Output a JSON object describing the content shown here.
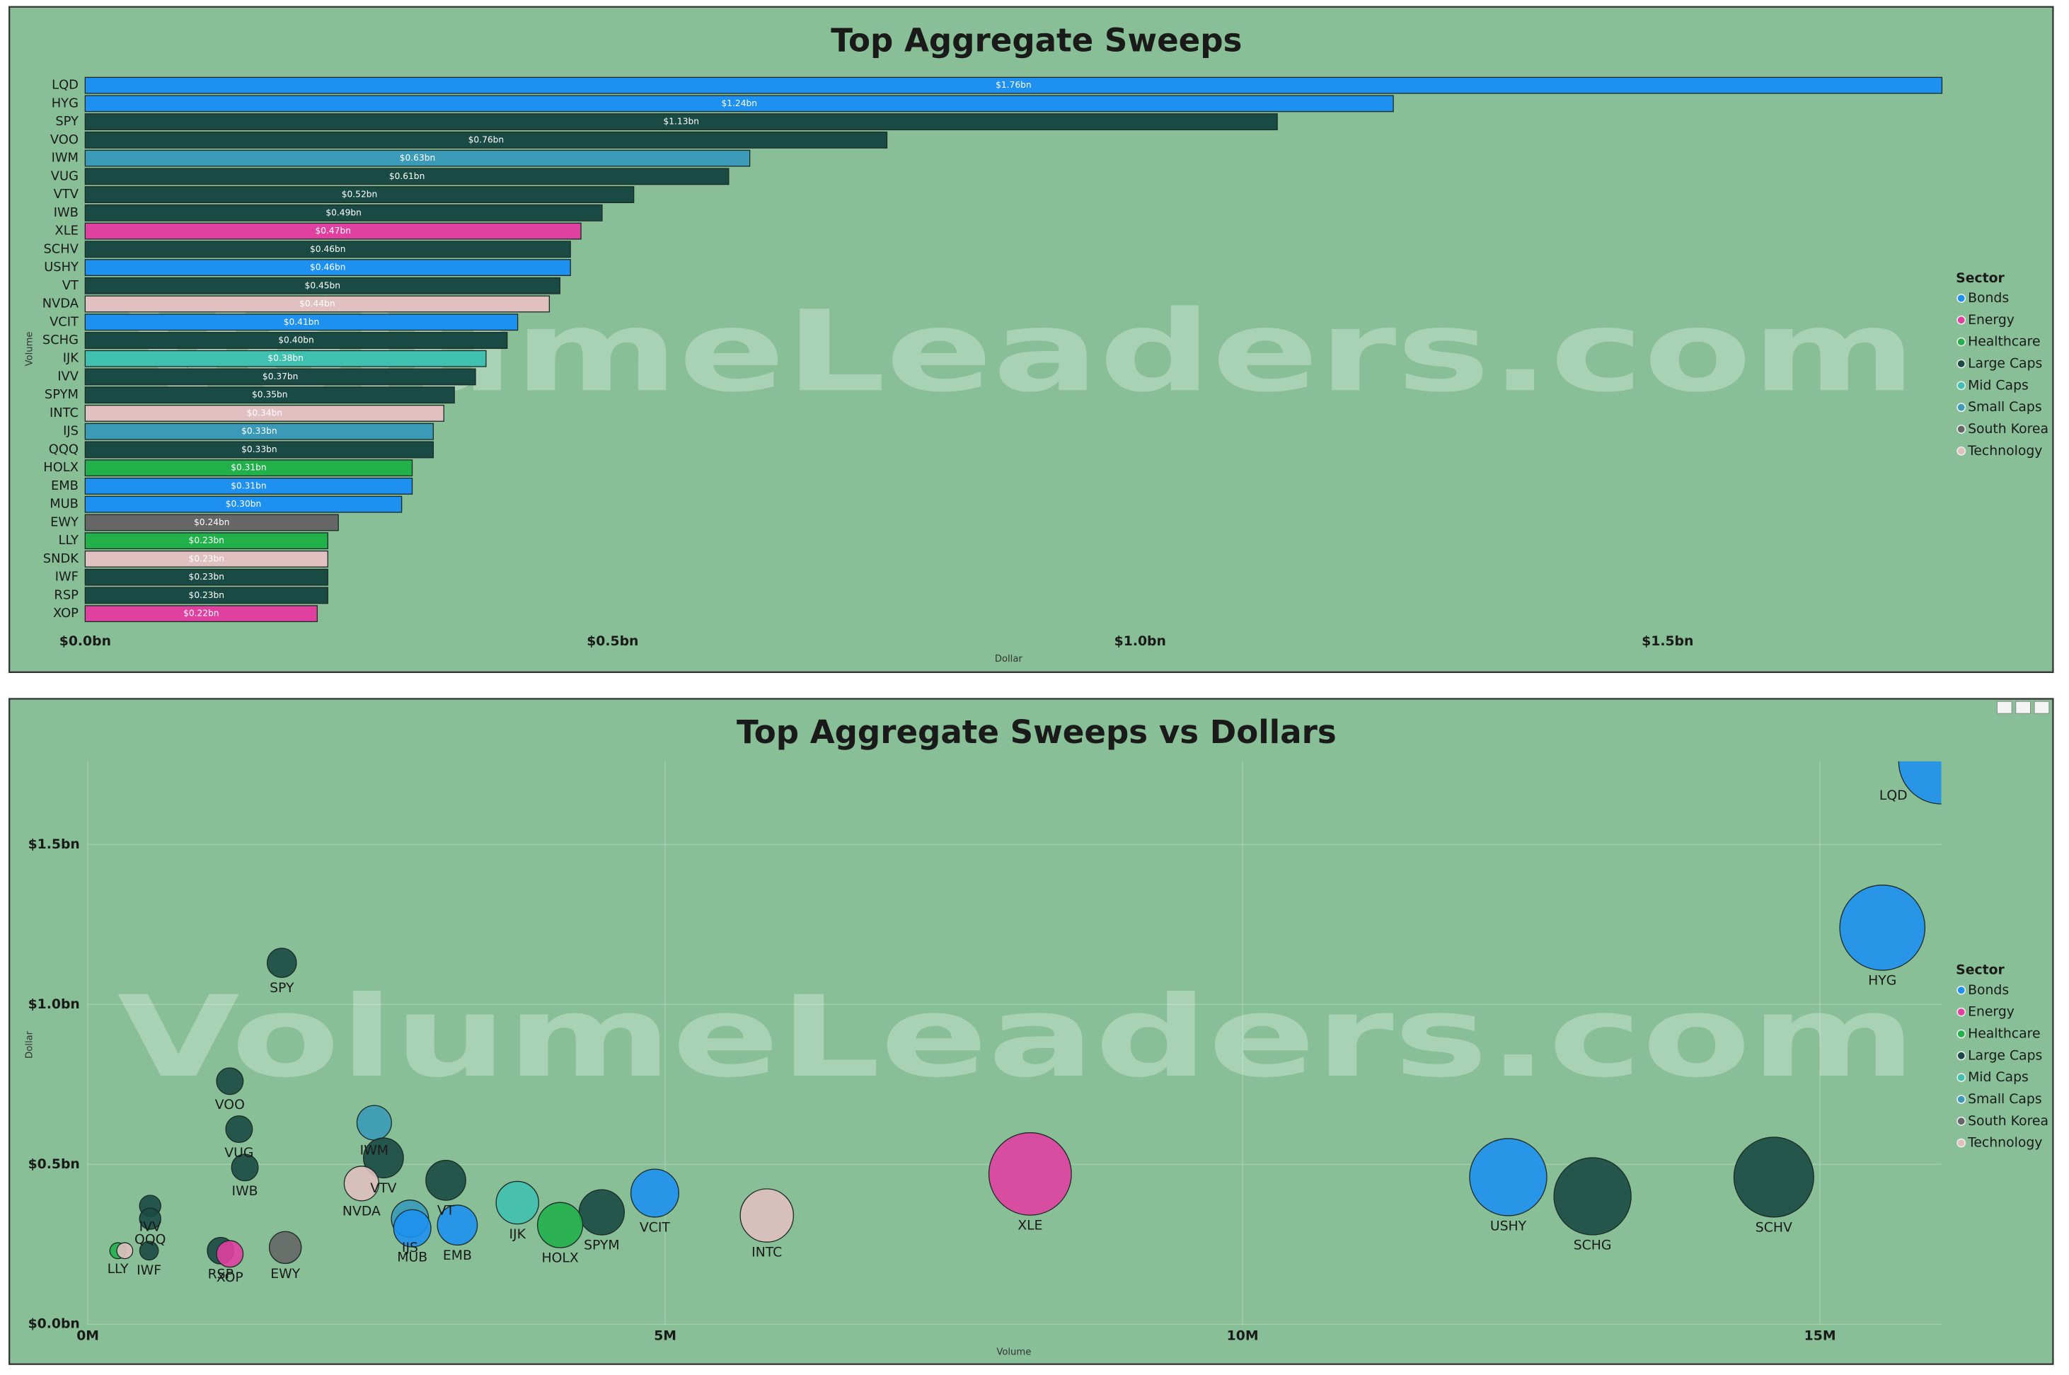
{
  "chart_data": [
    {
      "type": "bar",
      "orientation": "horizontal",
      "title": "Top Aggregate Sweeps",
      "x_label": "Dollar",
      "y_label": "Volume",
      "watermark": "VolumeLeaders.com",
      "categories": [
        "LQD",
        "HYG",
        "SPY",
        "VOO",
        "IWM",
        "VUG",
        "VTV",
        "IWB",
        "XLE",
        "SCHV",
        "USHY",
        "VT",
        "NVDA",
        "VCIT",
        "SCHG",
        "IJK",
        "IVV",
        "SPYM",
        "INTC",
        "IJS",
        "QQQ",
        "HOLX",
        "EMB",
        "MUB",
        "EWY",
        "LLY",
        "SNDK",
        "IWF",
        "RSP",
        "XOP"
      ],
      "values": [
        1.76,
        1.24,
        1.13,
        0.76,
        0.63,
        0.61,
        0.52,
        0.49,
        0.47,
        0.46,
        0.46,
        0.45,
        0.44,
        0.41,
        0.4,
        0.38,
        0.37,
        0.35,
        0.34,
        0.33,
        0.33,
        0.31,
        0.31,
        0.3,
        0.24,
        0.23,
        0.23,
        0.23,
        0.23,
        0.22
      ],
      "value_labels": [
        "$1.76bn",
        "$1.24bn",
        "$1.13bn",
        "$0.76bn",
        "$0.63bn",
        "$0.61bn",
        "$0.52bn",
        "$0.49bn",
        "$0.47bn",
        "$0.46bn",
        "$0.46bn",
        "$0.45bn",
        "$0.44bn",
        "$0.41bn",
        "$0.40bn",
        "$0.38bn",
        "$0.37bn",
        "$0.35bn",
        "$0.34bn",
        "$0.33bn",
        "$0.33bn",
        "$0.31bn",
        "$0.31bn",
        "$0.30bn",
        "$0.24bn",
        "$0.23bn",
        "$0.23bn",
        "$0.23bn",
        "$0.23bn",
        "$0.22bn"
      ],
      "colors": [
        "#1e90f0",
        "#1e90f0",
        "#1a4a44",
        "#1a4a44",
        "#3a9ab8",
        "#1a4a44",
        "#1a4a44",
        "#1a4a44",
        "#e040a0",
        "#1a4a44",
        "#1e90f0",
        "#1a4a44",
        "#e0c0c0",
        "#1e90f0",
        "#1a4a44",
        "#40c0b0",
        "#1a4a44",
        "#1a4a44",
        "#e0c0c0",
        "#3a9ab8",
        "#1a4a44",
        "#22b04a",
        "#1e90f0",
        "#1e90f0",
        "#666666",
        "#22b04a",
        "#e0c0c0",
        "#1a4a44",
        "#1a4a44",
        "#e040a0"
      ],
      "xlim": [
        0,
        1.83
      ],
      "xticks": [
        {
          "value": 0,
          "label": "$0.0bn"
        },
        {
          "value": 0.5,
          "label": "$0.5bn"
        },
        {
          "value": 1.0,
          "label": "$1.0bn"
        },
        {
          "value": 1.5,
          "label": "$1.5bn"
        }
      ],
      "legend": {
        "title": "Sector",
        "position": "right",
        "items": [
          {
            "name": "Bonds",
            "color": "#1e90f0"
          },
          {
            "name": "Energy",
            "color": "#e040a0"
          },
          {
            "name": "Healthcare",
            "color": "#22b04a"
          },
          {
            "name": "Large Caps",
            "color": "#1a4a44"
          },
          {
            "name": "Mid Caps",
            "color": "#40c0b0"
          },
          {
            "name": "Small Caps",
            "color": "#3a9ab8"
          },
          {
            "name": "South Korea",
            "color": "#666666"
          },
          {
            "name": "Technology",
            "color": "#e0c0c0"
          }
        ]
      }
    },
    {
      "type": "scatter",
      "title": "Top Aggregate Sweeps vs Dollars",
      "x_label": "Volume",
      "y_label": "Dollar",
      "watermark": "VolumeLeaders.com",
      "labels": [
        "LQD",
        "HYG",
        "SPY",
        "VOO",
        "IWM",
        "VUG",
        "VTV",
        "IWB",
        "XLE",
        "SCHV",
        "USHY",
        "VT",
        "NVDA",
        "VCIT",
        "SCHG",
        "IJK",
        "IVV",
        "SPYM",
        "INTC",
        "IJS",
        "QQQ",
        "HOLX",
        "EMB",
        "MUB",
        "EWY",
        "LLY",
        null,
        "IWF",
        "RSP",
        "XOP"
      ],
      "x": [
        16.05,
        15.54,
        1.68,
        1.23,
        2.48,
        1.31,
        2.56,
        1.36,
        8.16,
        14.6,
        12.3,
        3.1,
        2.37,
        4.91,
        13.03,
        3.72,
        0.54,
        4.45,
        5.88,
        2.79,
        0.54,
        4.09,
        3.2,
        2.81,
        1.71,
        0.26,
        0.32,
        0.53,
        1.15,
        1.23
      ],
      "values": [
        1.76,
        1.24,
        1.13,
        0.76,
        0.63,
        0.61,
        0.52,
        0.49,
        0.47,
        0.46,
        0.46,
        0.45,
        0.44,
        0.41,
        0.4,
        0.38,
        0.37,
        0.35,
        0.34,
        0.33,
        0.33,
        0.31,
        0.31,
        0.3,
        0.24,
        0.23,
        0.23,
        0.23,
        0.23,
        0.22
      ],
      "sizes": [
        32,
        32,
        11,
        10,
        13,
        10,
        15,
        10,
        31,
        30,
        29,
        15,
        13,
        18,
        29,
        16,
        8,
        17,
        20,
        14,
        8,
        17,
        15,
        14,
        12,
        6,
        6,
        7,
        10,
        10
      ],
      "colors": [
        "#1e90f0",
        "#1e90f0",
        "#1a4a44",
        "#1a4a44",
        "#3a9ab8",
        "#1a4a44",
        "#1a4a44",
        "#1a4a44",
        "#e040a0",
        "#1a4a44",
        "#1e90f0",
        "#1a4a44",
        "#e0c0c0",
        "#1e90f0",
        "#1a4a44",
        "#40c0b0",
        "#1a4a44",
        "#1a4a44",
        "#e0c0c0",
        "#3a9ab8",
        "#1a4a44",
        "#22b04a",
        "#1e90f0",
        "#1e90f0",
        "#666666",
        "#22b04a",
        "#e0c0c0",
        "#1a4a44",
        "#1a4a44",
        "#e040a0"
      ],
      "xlim": [
        0,
        16.05
      ],
      "ylim": [
        0,
        1.76
      ],
      "xticks": [
        {
          "value": 0,
          "label": "0M"
        },
        {
          "value": 5,
          "label": "5M"
        },
        {
          "value": 10,
          "label": "10M"
        },
        {
          "value": 15,
          "label": "15M"
        }
      ],
      "yticks": [
        {
          "value": 0,
          "label": "$0.0bn"
        },
        {
          "value": 0.5,
          "label": "$0.5bn"
        },
        {
          "value": 1.0,
          "label": "$1.0bn"
        },
        {
          "value": 1.5,
          "label": "$1.5bn"
        }
      ],
      "grid": true,
      "legend": {
        "title": "Sector",
        "position": "right",
        "items": [
          {
            "name": "Bonds",
            "color": "#1e90f0"
          },
          {
            "name": "Energy",
            "color": "#e040a0"
          },
          {
            "name": "Healthcare",
            "color": "#22b04a"
          },
          {
            "name": "Large Caps",
            "color": "#1a4a44"
          },
          {
            "name": "Mid Caps",
            "color": "#40c0b0"
          },
          {
            "name": "Small Caps",
            "color": "#3a9ab8"
          },
          {
            "name": "South Korea",
            "color": "#666666"
          },
          {
            "name": "Technology",
            "color": "#e0c0c0"
          }
        ]
      }
    }
  ]
}
